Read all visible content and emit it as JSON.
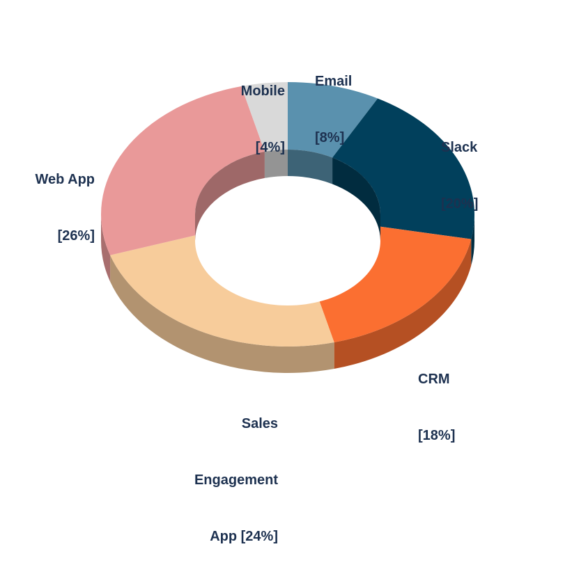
{
  "chart_data": {
    "type": "pie",
    "variant": "3d-donut",
    "title": "",
    "slices": [
      {
        "name": "Email",
        "value": 8,
        "color": "#5a91ae"
      },
      {
        "name": "Slack",
        "value": 20,
        "color": "#01405c"
      },
      {
        "name": "CRM",
        "value": 18,
        "color": "#fb6f31"
      },
      {
        "name": "Sales Engagement App",
        "value": 24,
        "color": "#f7cc9b"
      },
      {
        "name": "Web App",
        "value": 26,
        "color": "#e99999"
      },
      {
        "name": "Mobile",
        "value": 4,
        "color": "#d9d9d9"
      }
    ],
    "labels": [
      {
        "lines": [
          "Email",
          "[8%]"
        ]
      },
      {
        "lines": [
          "Slack",
          "[20%]"
        ]
      },
      {
        "lines": [
          "CRM",
          "[18%]"
        ]
      },
      {
        "lines": [
          "Sales",
          "Engagement",
          "App [24%]"
        ]
      },
      {
        "lines": [
          "Web App",
          "[26%]"
        ]
      },
      {
        "lines": [
          "Mobile",
          "[4%]"
        ]
      }
    ],
    "label_color": "#1d3150"
  }
}
